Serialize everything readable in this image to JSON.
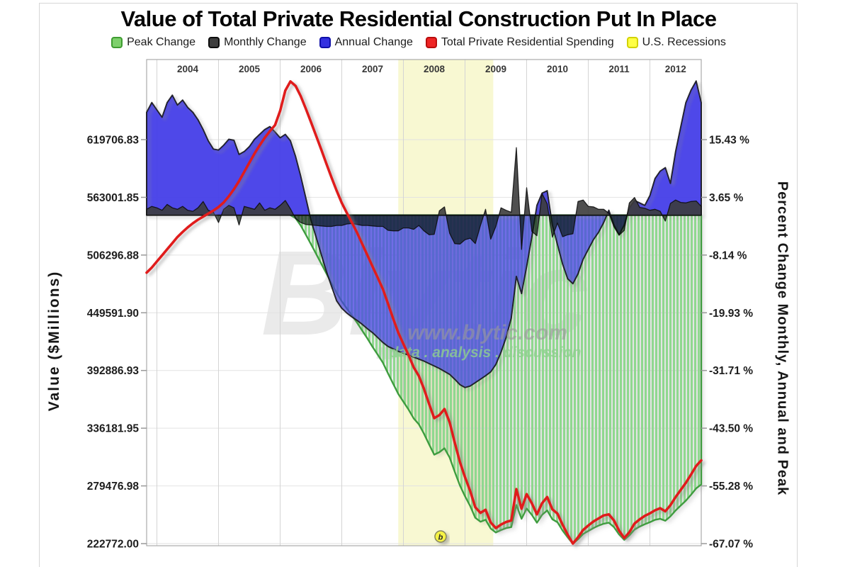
{
  "title": "Value of Total Private Residential Construction Put In Place",
  "legend": [
    {
      "label": "Peak Change",
      "color": "#7ed06c",
      "border": "#3f9c31"
    },
    {
      "label": "Monthly Change",
      "color": "#3d3d3d",
      "border": "#0c0c0c"
    },
    {
      "label": "Annual Change",
      "color": "#3330e0",
      "border": "#0f0fa8"
    },
    {
      "label": "Total Private Residential Spending",
      "color": "#ee2424",
      "border": "#b80d0d"
    },
    {
      "label": "U.S. Recessions",
      "color": "#ffff45",
      "border": "#d2d200"
    }
  ],
  "watermark": {
    "logo": "Blytic",
    "url": "www.blytic.com",
    "tagline": "data . analysis . discussion",
    "marker_glyph": "b"
  },
  "chart_data": {
    "type": "area",
    "title": "Value of Total Private Residential Construction Put In Place",
    "x_start": "2003-11",
    "x_end": "2012-11",
    "x_frequency": "monthly",
    "years": [
      2004,
      2005,
      2006,
      2007,
      2008,
      2009,
      2010,
      2011,
      2012
    ],
    "grid": true,
    "legend_position": "top",
    "left_axis": {
      "title": "Value ($Millions)",
      "ticks": [
        "619706.83",
        "563001.85",
        "506296.88",
        "449591.90",
        "392886.93",
        "336181.95",
        "279476.98",
        "222772.00"
      ],
      "tick_values": [
        619706.83,
        563001.85,
        506296.88,
        449591.9,
        392886.93,
        336181.95,
        279476.98,
        222772.0
      ]
    },
    "right_axis": {
      "title": "Percent Change Monthly, Annual and Peak",
      "ticks": [
        "15.43 %",
        "3.65 %",
        "-8.14 %",
        "-19.93 %",
        "-31.71 %",
        "-43.50 %",
        "-55.28 %",
        "-67.07 %"
      ],
      "tick_values": [
        15.43,
        3.65,
        -8.14,
        -19.93,
        -31.71,
        -43.5,
        -55.28,
        -67.07
      ]
    },
    "recession": {
      "start": "2007-12",
      "end": "2009-06"
    },
    "series": [
      {
        "name": "Peak Change",
        "axis": "right",
        "style": "striped-area",
        "color": "#8fd88f",
        "values": [
          0,
          0,
          0,
          0,
          0,
          0,
          0,
          0,
          0,
          0,
          0,
          0,
          0,
          0,
          0,
          0,
          0,
          0,
          0,
          0,
          0,
          0,
          0,
          0,
          0,
          0,
          0,
          0,
          0,
          -0.6,
          -2.1,
          -4.0,
          -5.9,
          -7.9,
          -9.9,
          -11.9,
          -13.9,
          -15.9,
          -17.6,
          -19.1,
          -20.5,
          -22.0,
          -23.6,
          -25.2,
          -26.9,
          -28.5,
          -30.1,
          -32.3,
          -34.4,
          -36.5,
          -38.1,
          -39.7,
          -41.5,
          -42.7,
          -44.6,
          -46.8,
          -48.9,
          -48.4,
          -47.6,
          -49.5,
          -52.4,
          -55.2,
          -57.4,
          -59.4,
          -61.8,
          -62.6,
          -62.2,
          -64.0,
          -64.8,
          -64.3,
          -63.9,
          -63.7,
          -59.2,
          -62.0,
          -59.9,
          -61.2,
          -62.8,
          -61.2,
          -60.3,
          -62.1,
          -62.7,
          -64.4,
          -65.8,
          -67.1,
          -66.2,
          -65.1,
          -64.5,
          -63.9,
          -63.4,
          -63.0,
          -62.8,
          -63.7,
          -65.2,
          -66.3,
          -65.4,
          -64.2,
          -63.6,
          -63.1,
          -62.7,
          -62.2,
          -62.0,
          -62.4,
          -61.5,
          -60.3,
          -59.3,
          -58.3,
          -57.1,
          -55.8,
          -55.0
        ]
      },
      {
        "name": "Monthly Change",
        "axis": "right",
        "style": "dark-area",
        "color": "#3d3d3d",
        "values": [
          1.2,
          1.8,
          1.5,
          1.0,
          2.2,
          1.5,
          1.2,
          1.8,
          1.0,
          0.8,
          1.5,
          2.8,
          1.0,
          0.6,
          -1.5,
          1.2,
          2.0,
          1.5,
          -2.0,
          1.8,
          1.5,
          1.2,
          2.5,
          1.0,
          1.5,
          1.2,
          2.0,
          3.0,
          1.3,
          -0.7,
          -1.5,
          -1.9,
          -2.0,
          -2.1,
          -2.2,
          -2.3,
          -2.3,
          -2.1,
          -2.1,
          -1.8,
          -1.7,
          -1.9,
          -2.1,
          -2.1,
          -2.2,
          -2.3,
          -2.3,
          -3.1,
          -3.2,
          -3.2,
          -2.6,
          -2.6,
          -2.9,
          -2.1,
          -3.2,
          -4.0,
          -3.9,
          0.9,
          1.7,
          -3.7,
          -5.8,
          -5.9,
          -5.0,
          -4.7,
          -5.8,
          -2.1,
          1.2,
          -4.9,
          -2.3,
          1.5,
          1.0,
          0.6,
          13.8,
          -7.0,
          5.6,
          -3.3,
          -4.2,
          4.4,
          2.3,
          -4.5,
          -1.6,
          -4.4,
          -4.0,
          -3.8,
          2.8,
          3.1,
          1.8,
          1.7,
          1.2,
          1.2,
          0.4,
          -2.4,
          -4.1,
          -3.1,
          2.5,
          3.6,
          1.6,
          1.4,
          1.0,
          1.2,
          0.8,
          -1.2,
          2.4,
          3.1,
          2.6,
          2.5,
          2.8,
          2.9,
          1.8
        ]
      },
      {
        "name": "Annual Change",
        "axis": "right",
        "style": "blue-area",
        "color": "#3330e0",
        "values": [
          21.0,
          23.0,
          21.5,
          20.0,
          23.0,
          24.5,
          22.5,
          23.5,
          22.0,
          21.0,
          19.5,
          17.5,
          15.2,
          13.5,
          13.3,
          14.3,
          15.5,
          15.3,
          12.4,
          13.0,
          14.0,
          15.5,
          16.5,
          17.5,
          18.1,
          17.0,
          15.8,
          16.5,
          15.2,
          12.0,
          8.0,
          3.5,
          -1.0,
          -4.5,
          -8.0,
          -11.5,
          -14.5,
          -17.5,
          -19.0,
          -20.0,
          -20.8,
          -21.5,
          -22.3,
          -23.2,
          -24.0,
          -25.0,
          -26.0,
          -26.8,
          -27.3,
          -27.8,
          -28.2,
          -28.6,
          -29.0,
          -29.4,
          -29.8,
          -30.3,
          -30.8,
          -31.3,
          -31.9,
          -32.5,
          -33.5,
          -34.6,
          -35.2,
          -34.9,
          -34.2,
          -33.5,
          -32.8,
          -32.0,
          -30.5,
          -28.0,
          -25.0,
          -21.0,
          -12.5,
          -16.0,
          -10.5,
          -4.5,
          2.0,
          4.5,
          5.0,
          -2.0,
          -6.0,
          -10.0,
          -13.0,
          -14.0,
          -12.0,
          -9.0,
          -7.0,
          -5.0,
          -3.5,
          -1.5,
          1.0,
          -2.0,
          -4.0,
          -2.0,
          1.5,
          3.0,
          2.5,
          2.0,
          4.0,
          7.5,
          9.0,
          9.7,
          6.5,
          13.0,
          18.0,
          23.0,
          25.5,
          27.4,
          23.0
        ]
      },
      {
        "name": "Total Private Residential Spending",
        "axis": "left",
        "style": "line",
        "color": "#e01b1b",
        "values": [
          489000,
          494000,
          500000,
          506000,
          512000,
          518000,
          524000,
          529000,
          533500,
          537500,
          541000,
          544000,
          547000,
          550000,
          553500,
          558000,
          564000,
          571000,
          579000,
          588000,
          597000,
          606000,
          614000,
          621500,
          628000,
          634000,
          648000,
          668000,
          676846,
          672500,
          662500,
          650000,
          637000,
          623500,
          610000,
          596000,
          582500,
          569500,
          557500,
          547500,
          538000,
          528000,
          517000,
          506000,
          495000,
          484000,
          473000,
          458500,
          444000,
          430000,
          419000,
          408000,
          396000,
          387500,
          375000,
          360000,
          346000,
          349000,
          355000,
          342000,
          322000,
          303000,
          288000,
          274500,
          258500,
          253000,
          256000,
          243500,
          238000,
          241500,
          244000,
          245500,
          276300,
          257000,
          271400,
          262500,
          251500,
          262500,
          268500,
          256500,
          252300,
          241200,
          231500,
          222772,
          229000,
          236200,
          240500,
          244500,
          247500,
          250500,
          251500,
          245500,
          235500,
          228200,
          234000,
          242500,
          246500,
          250000,
          252500,
          255500,
          257500,
          254500,
          260500,
          268500,
          275500,
          282500,
          290500,
          299000,
          304500
        ]
      }
    ]
  }
}
